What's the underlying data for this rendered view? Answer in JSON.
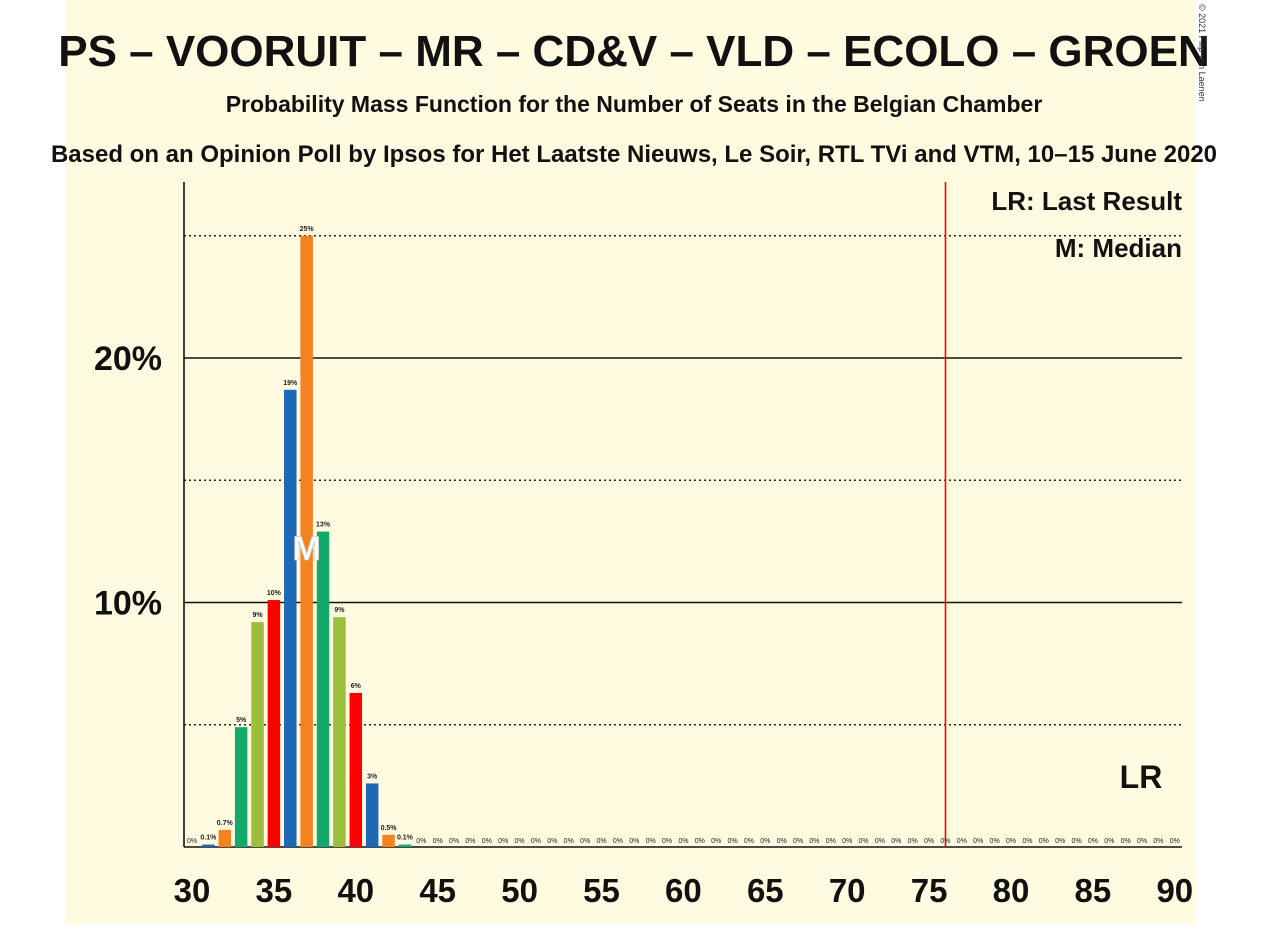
{
  "title": "PS – VOORUIT – MR – CD&V – VLD – ECOLO – GROEN",
  "subtitle": "Probability Mass Function for the Number of Seats in the Belgian Chamber",
  "source": "Based on an Opinion Poll by Ipsos for Het Laatste Nieuws, Le Soir, RTL TVi and VTM, 10–15 June 2020",
  "copyright": "© 2021 Filip van Laenen",
  "legend": {
    "lr": "LR: Last Result",
    "m": "M: Median"
  },
  "markers": {
    "median_label": "M",
    "lr_label": "LR"
  },
  "colors": {
    "background": "#fffbe0",
    "red": "#ff0000",
    "blue": "#1f68b5",
    "orange": "#f58220",
    "green": "#13a96a",
    "olive": "#9cbf3b",
    "last_result_line": "#ff0000"
  },
  "chart_data": {
    "type": "bar",
    "xlabel": "",
    "ylabel": "",
    "xlim": [
      30,
      90
    ],
    "ylim": [
      0,
      27
    ],
    "x_ticks": [
      30,
      35,
      40,
      45,
      50,
      55,
      60,
      65,
      70,
      75,
      80,
      85,
      90
    ],
    "y_major_ticks": [
      {
        "value": 10,
        "label": "10%"
      },
      {
        "value": 20,
        "label": "20%"
      }
    ],
    "y_dotted_lines": [
      5,
      15,
      25
    ],
    "median": 37,
    "last_result": 76,
    "bar_color_cycle": [
      "red",
      "blue",
      "orange",
      "green",
      "olive"
    ],
    "bars": [
      {
        "x": 31,
        "value": 0.1,
        "label": "0.1%"
      },
      {
        "x": 32,
        "value": 0.7,
        "label": "0.7%"
      },
      {
        "x": 33,
        "value": 4.9,
        "label": "5%"
      },
      {
        "x": 34,
        "value": 9.2,
        "label": "9%"
      },
      {
        "x": 35,
        "value": 10.1,
        "label": "10%"
      },
      {
        "x": 36,
        "value": 18.7,
        "label": "19%"
      },
      {
        "x": 37,
        "value": 25.0,
        "label": "25%"
      },
      {
        "x": 38,
        "value": 12.9,
        "label": "13%"
      },
      {
        "x": 39,
        "value": 9.4,
        "label": "9%"
      },
      {
        "x": 40,
        "value": 6.3,
        "label": "6%"
      },
      {
        "x": 41,
        "value": 2.6,
        "label": "3%"
      },
      {
        "x": 42,
        "value": 0.5,
        "label": "0.5%"
      },
      {
        "x": 43,
        "value": 0.1,
        "label": "0.1%"
      }
    ],
    "zero_label": "0%",
    "zero_label_xs": [
      30,
      44,
      45,
      46,
      47,
      48,
      49,
      50,
      51,
      52,
      53,
      54,
      55,
      56,
      57,
      58,
      59,
      60,
      61,
      62,
      63,
      64,
      65,
      66,
      67,
      68,
      69,
      70,
      71,
      72,
      73,
      74,
      75,
      76,
      77,
      78,
      79,
      80,
      81,
      82,
      83,
      84,
      85,
      86,
      87,
      88,
      89,
      90
    ]
  }
}
